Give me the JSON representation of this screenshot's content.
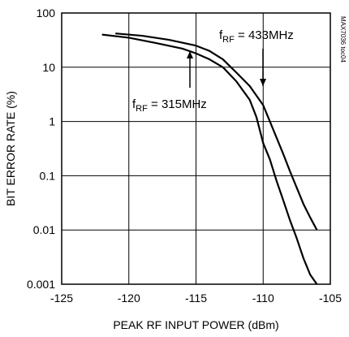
{
  "chart_data": {
    "type": "line",
    "xlabel": "PEAK RF INPUT POWER (dBm)",
    "ylabel": "BIT ERROR RATE (%)",
    "xlim": [
      -125,
      -105
    ],
    "ylim": [
      0.001,
      100
    ],
    "yscale": "log",
    "grid": true,
    "x_ticks": [
      "-125",
      "-120",
      "-115",
      "-110",
      "-105"
    ],
    "y_ticks": [
      "0.001",
      "0.01",
      "0.1",
      "1",
      "10",
      "100"
    ],
    "series": [
      {
        "name": "fRF = 315MHz",
        "x": [
          -122,
          -120,
          -118,
          -116,
          -115,
          -114,
          -113,
          -112,
          -111,
          -110.5,
          -110,
          -109.5,
          -109,
          -108.5,
          -108,
          -107.5,
          -107,
          -106.5,
          -106
        ],
        "y": [
          40,
          35,
          28,
          22,
          18,
          14,
          10,
          5.5,
          2.5,
          1.2,
          0.4,
          0.2,
          0.08,
          0.035,
          0.015,
          0.007,
          0.003,
          0.0015,
          0.001
        ]
      },
      {
        "name": "fRF = 433MHz",
        "x": [
          -121,
          -119,
          -117,
          -115,
          -114,
          -113,
          -112,
          -111,
          -110,
          -109.5,
          -109,
          -108.5,
          -108,
          -107.5,
          -107,
          -106.5,
          -106
        ],
        "y": [
          42,
          38,
          32,
          25,
          20,
          14,
          8,
          4.5,
          2,
          1,
          0.5,
          0.25,
          0.12,
          0.06,
          0.03,
          0.017,
          0.01
        ]
      }
    ],
    "annotations": [
      {
        "main": "f",
        "sub": "RF",
        "rest": " = 433MHz",
        "series": "fRF = 433MHz"
      },
      {
        "main": "f",
        "sub": "RF",
        "rest": " = 315MHz",
        "series": "fRF = 315MHz"
      }
    ],
    "watermark": "MAX7036 toc04"
  }
}
